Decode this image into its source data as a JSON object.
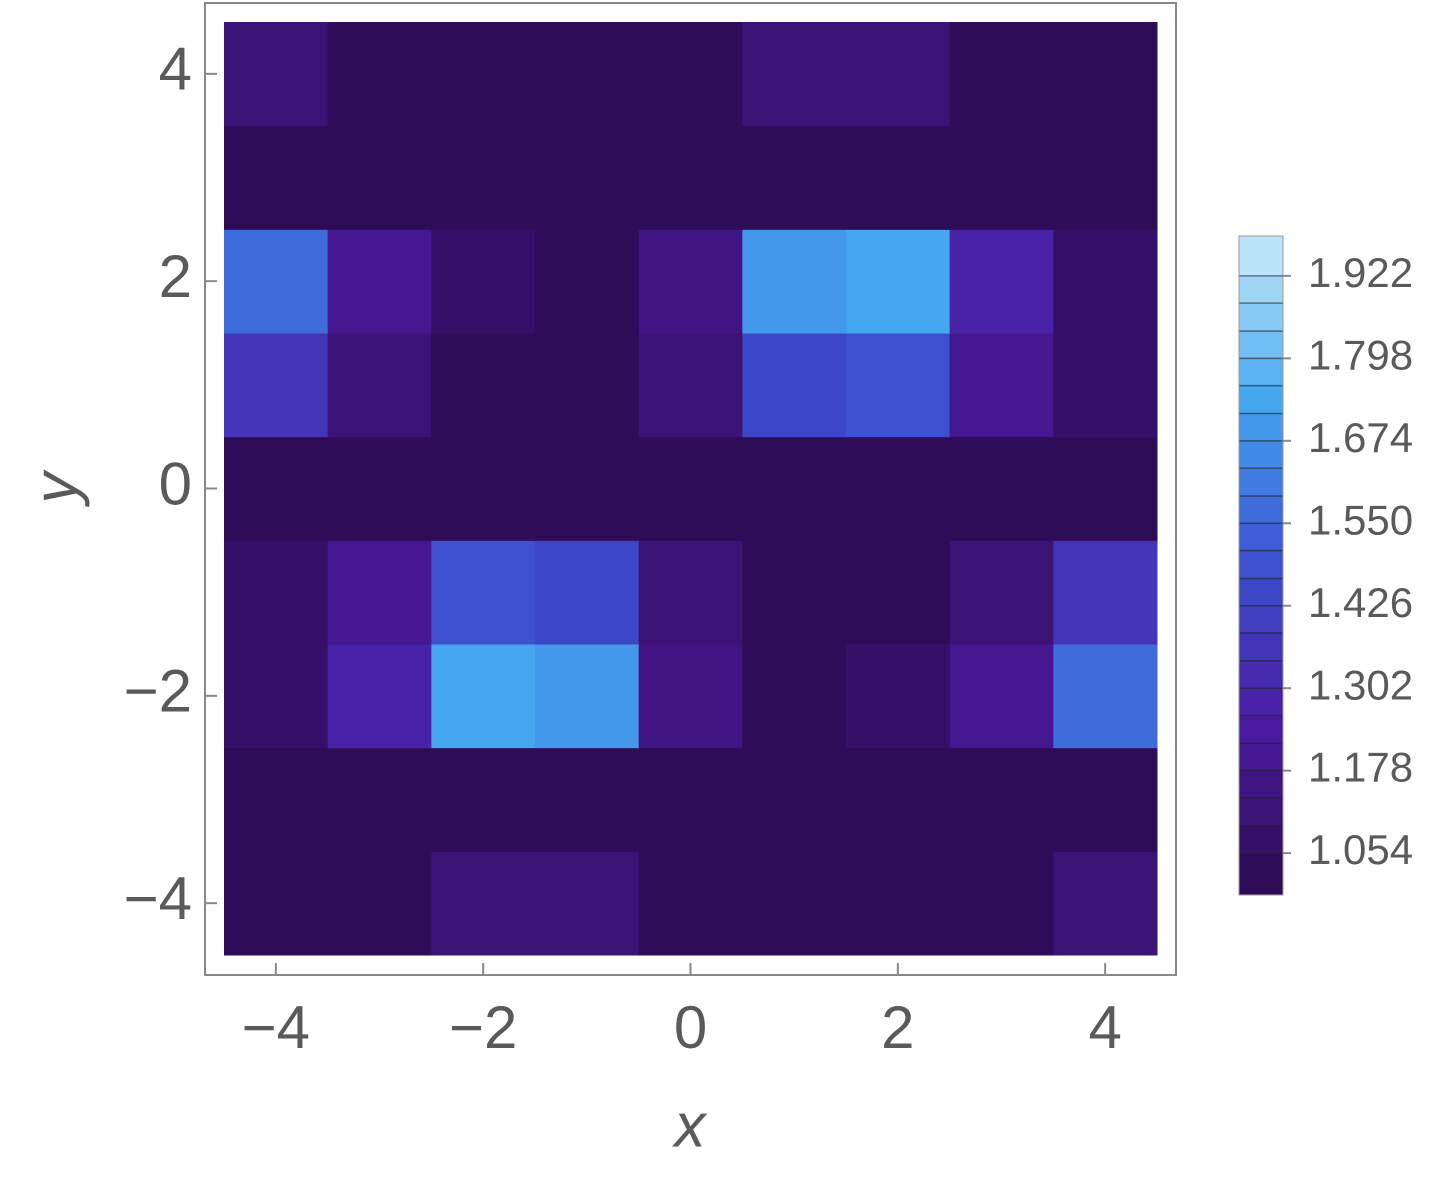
{
  "chart_data": {
    "type": "contour",
    "xlabel": "x",
    "ylabel": "y",
    "x": [
      -4,
      -3,
      -2,
      -1,
      0,
      1,
      2,
      3,
      4
    ],
    "y": [
      -4,
      -3,
      -2,
      -1,
      0,
      1,
      2,
      3,
      4
    ],
    "z": [
      [
        1.0,
        1.02,
        1.12,
        1.12,
        1.01,
        1.0,
        1.0,
        1.02,
        1.12
      ],
      [
        1.0,
        1.01,
        1.04,
        1.04,
        1.01,
        1.0,
        1.0,
        1.01,
        1.03
      ],
      [
        1.06,
        1.3,
        1.75,
        1.7,
        1.15,
        1.04,
        1.06,
        1.2,
        1.55
      ],
      [
        1.06,
        1.2,
        1.5,
        1.45,
        1.12,
        1.05,
        1.05,
        1.12,
        1.35
      ],
      [
        1.02,
        1.02,
        1.01,
        1.01,
        1.02,
        1.02,
        1.01,
        1.01,
        1.02
      ],
      [
        1.35,
        1.12,
        1.05,
        1.05,
        1.12,
        1.45,
        1.5,
        1.2,
        1.06
      ],
      [
        1.55,
        1.2,
        1.06,
        1.04,
        1.15,
        1.7,
        1.75,
        1.3,
        1.06
      ],
      [
        1.03,
        1.01,
        1.0,
        1.0,
        1.01,
        1.04,
        1.04,
        1.01,
        1.0
      ],
      [
        1.12,
        1.02,
        1.0,
        1.0,
        1.01,
        1.12,
        1.12,
        1.02,
        1.0
      ]
    ],
    "xlim": [
      -4.5,
      4.5
    ],
    "ylim": [
      -4.5,
      4.5
    ],
    "xticks": [
      {
        "value": -4,
        "label": "−4"
      },
      {
        "value": -2,
        "label": "−2"
      },
      0,
      2,
      4
    ],
    "yticks": [
      {
        "value": -4,
        "label": "−4"
      },
      {
        "value": -2,
        "label": "−2"
      },
      0,
      2,
      4
    ],
    "zlim": [
      0.991,
      1.982
    ],
    "zticks": [
      1.054,
      1.178,
      1.302,
      1.426,
      {
        "value": 1.55,
        "label": "1.550"
      },
      1.674,
      1.798,
      1.922
    ],
    "levels": [
      1.054,
      1.095,
      1.137,
      1.178,
      1.219,
      1.261,
      1.302,
      1.343,
      1.385,
      1.426,
      1.467,
      1.509,
      1.55,
      1.591,
      1.633,
      1.674,
      1.715,
      1.757,
      1.798,
      1.839,
      1.881,
      1.922
    ],
    "colormap": [
      "#2b0a4d",
      "#4a1a9e",
      "#3c4fd0",
      "#44a6f0",
      "#c9ecfb"
    ]
  }
}
